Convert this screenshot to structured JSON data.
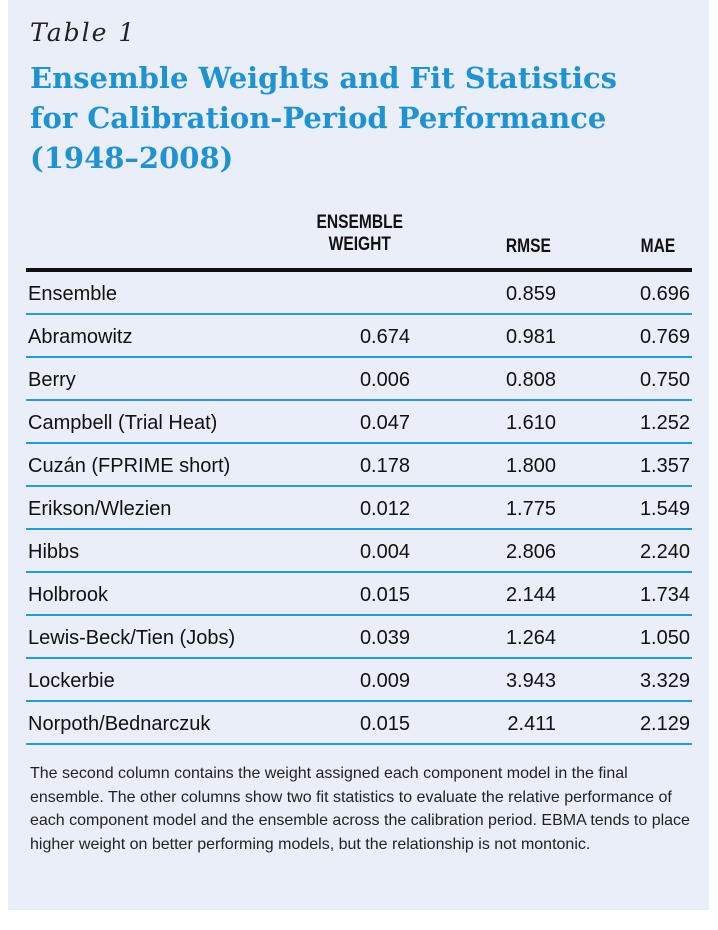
{
  "table": {
    "label": "Table 1",
    "title_lines": [
      "Ensemble Weights and Fit Statistics",
      "for Calibration-Period Performance",
      "(1948–2008)"
    ],
    "columns": {
      "weight_line1": "ENSEMBLE",
      "weight_line2": "WEIGHT",
      "rmse": "RMSE",
      "mae": "MAE"
    },
    "rows": [
      {
        "name": "Ensemble",
        "weight": "",
        "rmse": "0.859",
        "mae": "0.696"
      },
      {
        "name": "Abramowitz",
        "weight": "0.674",
        "rmse": "0.981",
        "mae": "0.769"
      },
      {
        "name": "Berry",
        "weight": "0.006",
        "rmse": "0.808",
        "mae": "0.750"
      },
      {
        "name": "Campbell (Trial Heat)",
        "weight": "0.047",
        "rmse": "1.610",
        "mae": "1.252"
      },
      {
        "name": "Cuzán (FPRIME short)",
        "weight": "0.178",
        "rmse": "1.800",
        "mae": "1.357"
      },
      {
        "name": "Erikson/Wlezien",
        "weight": "0.012",
        "rmse": "1.775",
        "mae": "1.549"
      },
      {
        "name": "Hibbs",
        "weight": "0.004",
        "rmse": "2.806",
        "mae": "2.240"
      },
      {
        "name": "Holbrook",
        "weight": "0.015",
        "rmse": "2.144",
        "mae": "1.734"
      },
      {
        "name": "Lewis-Beck/Tien (Jobs)",
        "weight": "0.039",
        "rmse": "1.264",
        "mae": "1.050"
      },
      {
        "name": "Lockerbie",
        "weight": "0.009",
        "rmse": "3.943",
        "mae": "3.329"
      },
      {
        "name": "Norpoth/Bednarczuk",
        "weight": "0.015",
        "rmse": "2.411",
        "mae": "2.129"
      }
    ],
    "note": "The second column contains the weight assigned each component model in the final ensemble. The other columns show two fit statistics to evaluate the relative performance of each component model and the ensemble across the calibration period. EBMA tends to place higher weight on better performing models, but the relationship is not montonic."
  },
  "colors": {
    "panel_background": "#e9eef8",
    "title": "#1f93d1",
    "row_rule": "#2a9ad4",
    "header_rule": "#111111"
  }
}
